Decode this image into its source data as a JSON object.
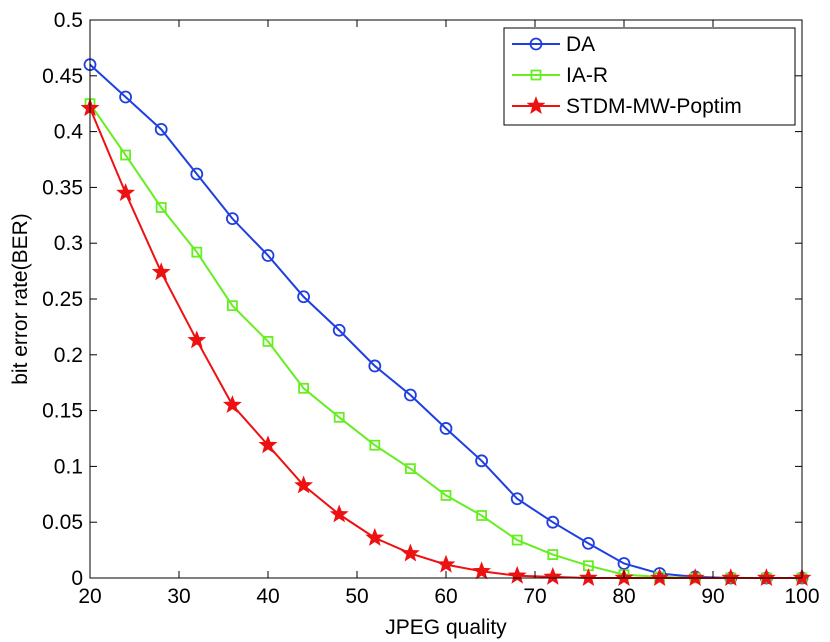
{
  "chart_data": {
    "type": "line",
    "title": "",
    "xlabel": "JPEG quality",
    "ylabel": "bit error rate(BER)",
    "xlim": [
      20,
      100
    ],
    "ylim": [
      0,
      0.5
    ],
    "xticks": [
      20,
      30,
      40,
      50,
      60,
      70,
      80,
      90,
      100
    ],
    "xtick_labels": [
      "20",
      "30",
      "40",
      "50",
      "60",
      "70",
      "80",
      "90",
      "100"
    ],
    "yticks": [
      0,
      0.05,
      0.1,
      0.15,
      0.2,
      0.25,
      0.3,
      0.35,
      0.4,
      0.45,
      0.5
    ],
    "ytick_labels": [
      "0",
      "0.05",
      "0.1",
      "0.15",
      "0.2",
      "0.25",
      "0.3",
      "0.35",
      "0.4",
      "0.45",
      "0.5"
    ],
    "grid": false,
    "legend_position": "top-right",
    "x": [
      20,
      24,
      28,
      32,
      36,
      40,
      44,
      48,
      52,
      56,
      60,
      64,
      68,
      72,
      76,
      80,
      84,
      88,
      92,
      96,
      100
    ],
    "series": [
      {
        "name": "DA",
        "color": "#1f3fe0",
        "marker": "circle",
        "values": [
          0.46,
          0.431,
          0.402,
          0.362,
          0.322,
          0.289,
          0.252,
          0.222,
          0.19,
          0.164,
          0.134,
          0.105,
          0.071,
          0.05,
          0.031,
          0.013,
          0.004,
          0.001,
          0.0,
          0.0,
          0.0
        ]
      },
      {
        "name": "IA-R",
        "color": "#66ee22",
        "marker": "square",
        "values": [
          0.425,
          0.379,
          0.332,
          0.292,
          0.244,
          0.212,
          0.17,
          0.144,
          0.119,
          0.098,
          0.074,
          0.056,
          0.034,
          0.021,
          0.011,
          0.003,
          0.001,
          0.0,
          0.0,
          0.0,
          0.0
        ]
      },
      {
        "name": "STDM-MW-Poptim",
        "color": "#ee1111",
        "marker": "star",
        "values": [
          0.421,
          0.345,
          0.274,
          0.213,
          0.155,
          0.119,
          0.083,
          0.057,
          0.036,
          0.022,
          0.012,
          0.006,
          0.002,
          0.001,
          0.0,
          0.0,
          0.0,
          0.0,
          0.0,
          0.0,
          0.0
        ]
      }
    ]
  }
}
